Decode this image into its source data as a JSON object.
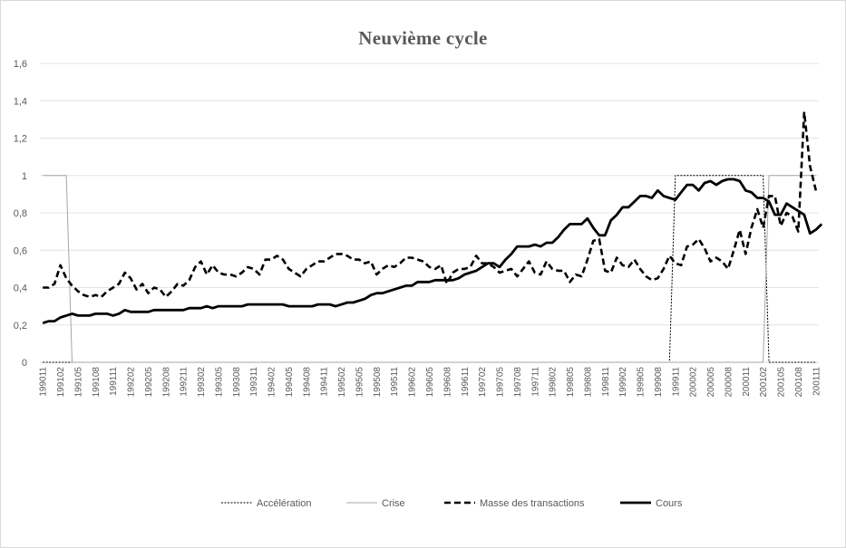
{
  "chart_data": {
    "type": "line",
    "title": "Neuvième cycle",
    "xlabel": "",
    "ylabel": "",
    "ylim": [
      0,
      1.6
    ],
    "y_ticks": [
      "0",
      "0,2",
      "0,4",
      "0,6",
      "0,8",
      "1",
      "1,2",
      "1,4",
      "1,6"
    ],
    "y_tick_values": [
      0,
      0.2,
      0.4,
      0.6,
      0.8,
      1.0,
      1.2,
      1.4,
      1.6
    ],
    "grid": "horizontal",
    "legend_position": "bottom",
    "x_tick_labels": [
      "199011",
      "199102",
      "199105",
      "199108",
      "199111",
      "199202",
      "199205",
      "199208",
      "199211",
      "199302",
      "199305",
      "199308",
      "199311",
      "199402",
      "199405",
      "199408",
      "199411",
      "199502",
      "199505",
      "199508",
      "199511",
      "199602",
      "199605",
      "199608",
      "199611",
      "199702",
      "199705",
      "199708",
      "199711",
      "199802",
      "199805",
      "199808",
      "199811",
      "199902",
      "199905",
      "199908",
      "199911",
      "200002",
      "200005",
      "200008",
      "200011",
      "200102",
      "200105",
      "200108",
      "200111"
    ],
    "series": [
      {
        "name": "Accélération",
        "style": "dotted",
        "color": "#000000",
        "steps": [
          {
            "from": "199011",
            "to": "199910",
            "value": 0
          },
          {
            "from": "199911",
            "to": "200102",
            "value": 1
          },
          {
            "from": "200103",
            "to": "200111",
            "value": 0
          }
        ]
      },
      {
        "name": "Crise",
        "style": "thin",
        "color": "#a6a6a6",
        "steps": [
          {
            "from": "199011",
            "to": "199103",
            "value": 1
          },
          {
            "from": "199104",
            "to": "200102",
            "value": 0
          },
          {
            "from": "200103",
            "to": "200111",
            "value": 1
          }
        ]
      },
      {
        "name": "Masse des transactions",
        "style": "dashed",
        "color": "#000000",
        "values": [
          0.4,
          0.4,
          0.42,
          0.52,
          0.45,
          0.41,
          0.38,
          0.36,
          0.35,
          0.36,
          0.35,
          0.38,
          0.4,
          0.42,
          0.48,
          0.45,
          0.39,
          0.42,
          0.37,
          0.4,
          0.39,
          0.35,
          0.38,
          0.42,
          0.41,
          0.44,
          0.51,
          0.54,
          0.47,
          0.52,
          0.48,
          0.47,
          0.47,
          0.46,
          0.48,
          0.51,
          0.5,
          0.47,
          0.55,
          0.55,
          0.57,
          0.55,
          0.5,
          0.48,
          0.46,
          0.5,
          0.52,
          0.54,
          0.54,
          0.56,
          0.58,
          0.58,
          0.57,
          0.55,
          0.55,
          0.53,
          0.54,
          0.47,
          0.5,
          0.52,
          0.51,
          0.53,
          0.56,
          0.56,
          0.55,
          0.54,
          0.51,
          0.5,
          0.52,
          0.42,
          0.48,
          0.5,
          0.5,
          0.51,
          0.57,
          0.53,
          0.53,
          0.51,
          0.48,
          0.49,
          0.5,
          0.46,
          0.5,
          0.54,
          0.48,
          0.47,
          0.54,
          0.5,
          0.49,
          0.49,
          0.43,
          0.47,
          0.46,
          0.55,
          0.65,
          0.66,
          0.49,
          0.48,
          0.56,
          0.52,
          0.51,
          0.55,
          0.5,
          0.46,
          0.44,
          0.45,
          0.5,
          0.57,
          0.53,
          0.52,
          0.62,
          0.63,
          0.66,
          0.61,
          0.54,
          0.56,
          0.54,
          0.5,
          0.6,
          0.71,
          0.58,
          0.72,
          0.82,
          0.72,
          0.89,
          0.89,
          0.73,
          0.8,
          0.78,
          0.7,
          1.34,
          1.05,
          0.92
        ]
      },
      {
        "name": "Cours",
        "style": "solid",
        "color": "#000000",
        "values": [
          0.21,
          0.22,
          0.22,
          0.24,
          0.25,
          0.26,
          0.25,
          0.25,
          0.25,
          0.26,
          0.26,
          0.26,
          0.25,
          0.26,
          0.28,
          0.27,
          0.27,
          0.27,
          0.27,
          0.28,
          0.28,
          0.28,
          0.28,
          0.28,
          0.28,
          0.29,
          0.29,
          0.29,
          0.3,
          0.29,
          0.3,
          0.3,
          0.3,
          0.3,
          0.3,
          0.31,
          0.31,
          0.31,
          0.31,
          0.31,
          0.31,
          0.31,
          0.3,
          0.3,
          0.3,
          0.3,
          0.3,
          0.31,
          0.31,
          0.31,
          0.3,
          0.31,
          0.32,
          0.32,
          0.33,
          0.34,
          0.36,
          0.37,
          0.37,
          0.38,
          0.39,
          0.4,
          0.41,
          0.41,
          0.43,
          0.43,
          0.43,
          0.44,
          0.44,
          0.44,
          0.44,
          0.45,
          0.47,
          0.48,
          0.49,
          0.51,
          0.53,
          0.53,
          0.51,
          0.55,
          0.58,
          0.62,
          0.62,
          0.62,
          0.63,
          0.62,
          0.64,
          0.64,
          0.67,
          0.71,
          0.74,
          0.74,
          0.74,
          0.77,
          0.72,
          0.68,
          0.68,
          0.76,
          0.79,
          0.83,
          0.83,
          0.86,
          0.89,
          0.89,
          0.88,
          0.92,
          0.89,
          0.88,
          0.87,
          0.91,
          0.95,
          0.95,
          0.92,
          0.96,
          0.97,
          0.95,
          0.97,
          0.98,
          0.98,
          0.97,
          0.92,
          0.91,
          0.88,
          0.88,
          0.86,
          0.79,
          0.79,
          0.85,
          0.83,
          0.81,
          0.79,
          0.69,
          0.71,
          0.74
        ]
      }
    ]
  }
}
